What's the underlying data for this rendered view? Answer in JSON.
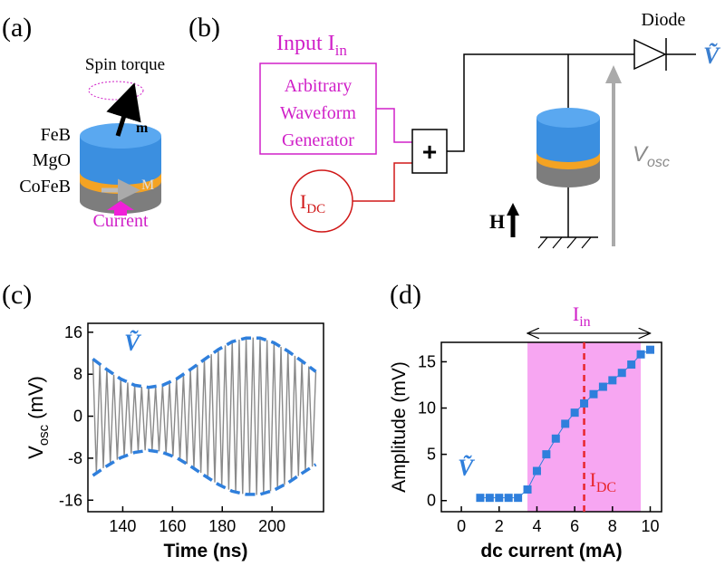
{
  "panel_labels": [
    "(a)",
    "(b)",
    "(c)",
    "(d)"
  ],
  "device": {
    "spin_torque": "Spin torque",
    "m": "m",
    "layers": [
      "FeB",
      "MgO",
      "CoFeB"
    ],
    "M": "M",
    "current": "Current"
  },
  "circuit": {
    "input": "Input I",
    "input_sub": "in",
    "generator": [
      "Arbitrary",
      "Waveform",
      "Generator"
    ],
    "adder": "+",
    "dc": "I",
    "dc_sub": "DC",
    "diode": "Diode",
    "output": "Ṽ",
    "vosc": "V",
    "vosc_sub": "osc",
    "field": "H"
  },
  "chart_data": [
    {
      "type": "line",
      "x_label": "Time (ns)",
      "y_label": "V",
      "y_label_sub": "osc",
      "y_label_unit": "(mV)",
      "annotation": "Ṽ",
      "x": [
        128,
        129.4,
        130.8,
        132.2,
        133.6,
        135,
        136.4,
        137.8,
        139.2,
        140.6,
        142,
        143.4,
        144.8,
        146.2,
        147.6,
        149,
        150.4,
        151.8,
        153.2,
        154.6,
        156,
        157.4,
        158.8,
        160.2,
        161.6,
        163,
        164.4,
        165.8,
        167.2,
        168.6,
        170,
        171.4,
        172.8,
        174.2,
        175.6,
        177,
        178.4,
        179.8,
        181.2,
        182.6,
        184,
        185.4,
        186.8,
        188.2,
        189.6,
        191,
        192.4,
        193.8,
        195.2,
        196.6,
        198,
        199.4,
        200.8,
        202.2,
        203.6,
        205,
        206.4,
        207.8,
        209.2,
        210.6,
        212,
        213.4,
        214.8,
        216.2,
        217.6
      ],
      "series": [
        {
          "color": "#8a8a8a",
          "values": [
            10.9,
            -10.8,
            9.9,
            -9.9,
            8.9,
            -9.1,
            7.9,
            -8.3,
            7.1,
            -7.6,
            6.4,
            -7.1,
            5.9,
            -6.7,
            5.6,
            -6.5,
            5.5,
            -6.5,
            5.6,
            -6.7,
            5.9,
            -7.1,
            6.4,
            -7.6,
            7.1,
            -8.3,
            7.9,
            -9.1,
            8.9,
            -9.9,
            9.8,
            -10.8,
            10.8,
            -11.7,
            11.8,
            -12.6,
            12.7,
            -13.3,
            13.5,
            -14.0,
            14.2,
            -14.5,
            14.6,
            -14.8,
            14.9,
            -15.0,
            15.0,
            -15.0,
            14.9,
            -14.7,
            14.5,
            -14.3,
            14.0,
            -13.8,
            13.2,
            -13.1,
            12.4,
            -12.3,
            11.5,
            -11.4,
            10.5,
            -10.5,
            9.5,
            -9.6,
            8.5
          ]
        },
        {
          "color": "#2f7fdc",
          "dash": true,
          "x": [
            128,
            133.6,
            139.2,
            144.8,
            150.4,
            156,
            161.6,
            167.2,
            172.8,
            178.4,
            184,
            189.6,
            195.2,
            200.8,
            206.4,
            212,
            217.6
          ],
          "values": [
            10.9,
            8.9,
            7.1,
            5.9,
            5.5,
            5.9,
            7.1,
            8.9,
            10.8,
            12.7,
            14.2,
            14.9,
            14.9,
            14.0,
            12.4,
            10.5,
            8.5
          ]
        },
        {
          "color": "#2f7fdc",
          "dash": true,
          "x": [
            128,
            133.6,
            139.2,
            144.8,
            150.4,
            156,
            161.6,
            167.2,
            172.8,
            178.4,
            184,
            189.6,
            195.2,
            200.8,
            206.4,
            212,
            217.6
          ],
          "values": [
            -11.3,
            -9.5,
            -7.9,
            -6.9,
            -6.5,
            -6.9,
            -7.9,
            -9.5,
            -11.3,
            -13.0,
            -14.3,
            -14.9,
            -14.9,
            -14.1,
            -12.7,
            -10.9,
            -9.2
          ]
        }
      ],
      "xlim": [
        126,
        220.7
      ],
      "xticks": [
        140,
        160,
        180,
        200
      ],
      "ylim": [
        -18.2,
        17.7
      ],
      "yticks": [
        16,
        8,
        0,
        -8,
        -16
      ]
    },
    {
      "type": "line",
      "x_label": "dc current (mA)",
      "y_label": "Amplitude (mV)",
      "annotation": "Ṽ",
      "x": [
        1,
        1.5,
        2,
        2.5,
        3,
        3.5,
        4,
        4.5,
        5,
        5.5,
        6,
        6.5,
        7,
        7.5,
        8,
        8.5,
        9,
        9.5,
        10
      ],
      "series": [
        {
          "color": "#2f7fdc",
          "marker": "square",
          "values": [
            0.3,
            0.3,
            0.3,
            0.3,
            0.3,
            1.2,
            3.2,
            5.0,
            6.7,
            8.3,
            9.5,
            10.5,
            11.5,
            12.3,
            13.0,
            13.8,
            14.7,
            15.8,
            16.3
          ]
        }
      ],
      "shade": {
        "from": 3.5,
        "to": 9.5,
        "color": "#f7a6f2"
      },
      "dc_line": {
        "x": 6.5,
        "color": "#e8262d"
      },
      "range_arrow": {
        "from": 3.5,
        "to": 10
      },
      "range_label": "I",
      "range_label_sub": "in",
      "dc_label": "I",
      "dc_label_sub": "DC",
      "xlim": [
        -1.06,
        10.6
      ],
      "xticks": [
        0,
        2,
        4,
        6,
        8,
        10
      ],
      "ylim": [
        -1.2,
        17.1
      ],
      "yticks": [
        0,
        5,
        10,
        15
      ]
    }
  ]
}
